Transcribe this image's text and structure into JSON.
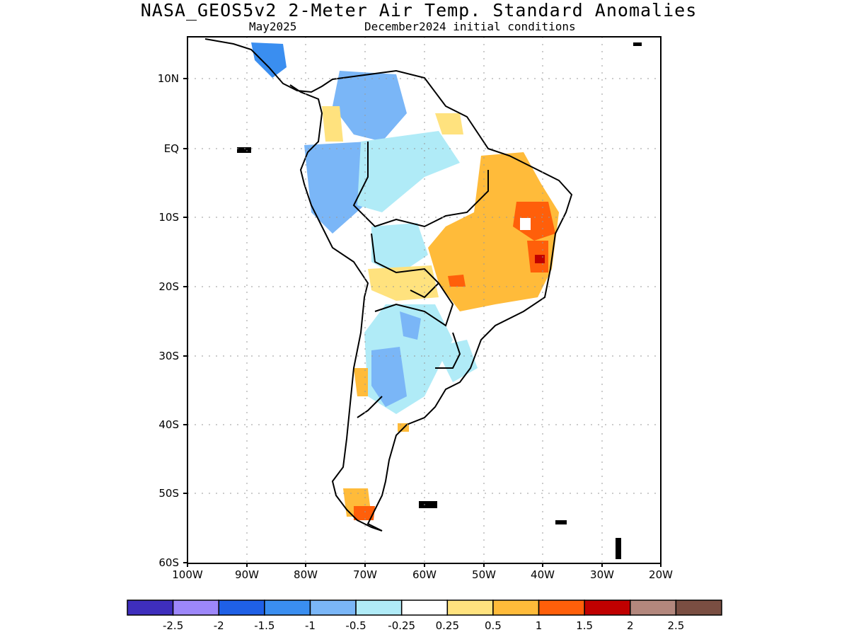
{
  "title": "NASA_GEOS5v2 2-Meter Air Temp. Standard Anomalies",
  "subtitle_left": "May2025",
  "subtitle_right": "December2024 initial conditions",
  "lat_labels": [
    "10N",
    "EQ",
    "10S",
    "20S",
    "30S",
    "40S",
    "50S",
    "60S"
  ],
  "lon_labels": [
    "100W",
    "90W",
    "80W",
    "70W",
    "60W",
    "50W",
    "40W",
    "30W",
    "20W"
  ],
  "colorbar": {
    "colors": [
      "#3e2ebd",
      "#9d87fa",
      "#1f60e6",
      "#3a8ef0",
      "#7ab6f7",
      "#b0ebf7",
      "#ffffff",
      "#ffe27e",
      "#ffbb3a",
      "#ff5f0a",
      "#c00000",
      "#b3877d",
      "#7a4e42"
    ],
    "labels": [
      "-2.5",
      "-2",
      "-1.5",
      "-1",
      "-0.5",
      "-0.25",
      "0.25",
      "0.5",
      "1",
      "1.5",
      "2",
      "2.5"
    ]
  }
}
